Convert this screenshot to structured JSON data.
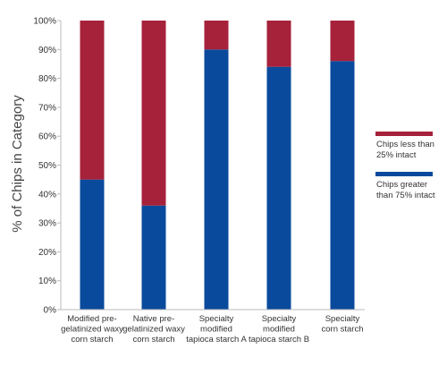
{
  "chart_data": {
    "type": "bar",
    "stacked": true,
    "percent_stacked": true,
    "ylabel": "% of Chips in Category",
    "xlabel": "",
    "ylim": [
      0,
      100
    ],
    "yticks": [
      "0%",
      "10%",
      "20%",
      "30%",
      "40%",
      "50%",
      "60%",
      "70%",
      "80%",
      "90%",
      "100%"
    ],
    "categories": [
      [
        "Modified pre-",
        "gelatinized waxy",
        "corn starch"
      ],
      [
        "Native pre-",
        "gelatinized waxy",
        "corn starch"
      ],
      [
        "Specialty",
        "modified",
        "tapioca starch A"
      ],
      [
        "Specialty",
        "modified",
        "tapioca starch B"
      ],
      [
        "Specialty",
        "corn starch"
      ]
    ],
    "series": [
      {
        "name": "Chips greater than 75% intact",
        "legend_lines": [
          "Chips greater",
          "than 75% intact"
        ],
        "color": "#0a4a9c",
        "values": [
          45,
          36,
          90,
          84,
          86
        ]
      },
      {
        "name": "Chips less than 25% intact",
        "legend_lines": [
          "Chips less than",
          "25% intact"
        ],
        "color": "#a6213a",
        "values": [
          55,
          64,
          10,
          16,
          14
        ]
      }
    ],
    "legend_position": "right",
    "grid": false
  }
}
